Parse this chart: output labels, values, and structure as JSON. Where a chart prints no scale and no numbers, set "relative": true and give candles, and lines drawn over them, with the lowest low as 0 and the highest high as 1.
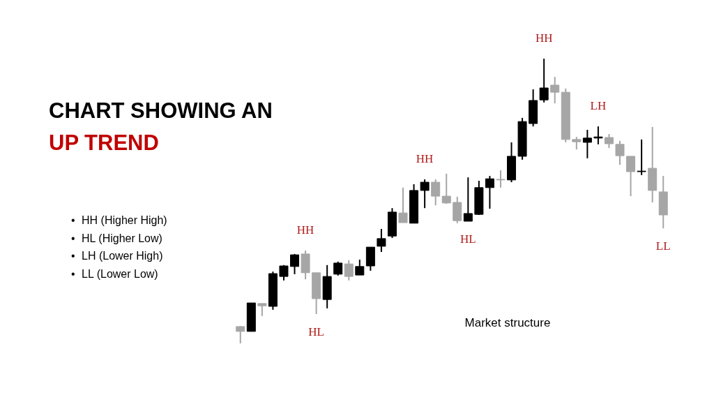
{
  "chart_data": {
    "type": "candlestick",
    "title": "CHART SHOWING AN",
    "subtitle": "UP TREND",
    "relative": true,
    "categories": [
      null,
      null,
      null,
      null,
      null,
      null,
      null,
      null,
      null,
      null,
      null,
      null,
      null,
      null,
      null,
      null,
      null,
      null,
      null,
      null,
      null,
      null,
      null,
      null,
      null,
      null,
      null,
      null,
      null,
      null,
      null,
      null,
      null,
      null,
      null,
      null,
      null,
      null,
      null,
      null
    ],
    "ohlc": [
      [
        0.059,
        0.061,
        0,
        0.042
      ],
      [
        0.042,
        0.142,
        0.042,
        0.142
      ],
      [
        0.14,
        0.14,
        0.096,
        0.132
      ],
      [
        0.13,
        0.252,
        0.118,
        0.245
      ],
      [
        0.235,
        0.275,
        0.221,
        0.272
      ],
      [
        0.27,
        0.314,
        0.243,
        0.311
      ],
      [
        0.314,
        0.326,
        0.225,
        0.248
      ],
      [
        0.248,
        0.248,
        0.103,
        0.157
      ],
      [
        0.154,
        0.275,
        0.123,
        0.235
      ],
      [
        0.243,
        0.287,
        0.238,
        0.282
      ],
      [
        0.279,
        0.292,
        0.221,
        0.235
      ],
      [
        0.24,
        0.294,
        0.24,
        0.27
      ],
      [
        0.272,
        0.338,
        0.255,
        0.338
      ],
      [
        0.341,
        0.402,
        0.321,
        0.368
      ],
      [
        0.377,
        0.475,
        0.37,
        0.461
      ],
      [
        0.458,
        0.547,
        0.424,
        0.424
      ],
      [
        0.422,
        0.559,
        0.422,
        0.537
      ],
      [
        0.537,
        0.576,
        0.475,
        0.566
      ],
      [
        0.566,
        0.576,
        0.485,
        0.517
      ],
      [
        0.517,
        0.596,
        0.49,
        0.493
      ],
      [
        0.495,
        0.515,
        0.422,
        0.431
      ],
      [
        0.429,
        0.583,
        0.429,
        0.456
      ],
      [
        0.453,
        0.571,
        0.451,
        0.547
      ],
      [
        0.547,
        0.588,
        0.473,
        0.578
      ],
      [
        0.576,
        0.608,
        0.547,
        0.574
      ],
      [
        0.574,
        0.706,
        0.566,
        0.657
      ],
      [
        0.657,
        0.792,
        0.645,
        0.779
      ],
      [
        0.772,
        0.892,
        0.762,
        0.853
      ],
      [
        0.855,
        1,
        0.846,
        0.897
      ],
      [
        0.907,
        0.936,
        0.843,
        0.882
      ],
      [
        0.882,
        0.895,
        0.706,
        0.716
      ],
      [
        0.716,
        0.725,
        0.681,
        0.708
      ],
      [
        0.706,
        0.75,
        0.65,
        0.721
      ],
      [
        0.721,
        0.762,
        0.699,
        0.725
      ],
      [
        0.723,
        0.735,
        0.686,
        0.701
      ],
      [
        0.699,
        0.711,
        0.627,
        0.659
      ],
      [
        0.657,
        0.657,
        0.517,
        0.603
      ],
      [
        0.603,
        0.716,
        0.591,
        0.605
      ],
      [
        0.615,
        0.76,
        0.495,
        0.537
      ],
      [
        0.532,
        0.588,
        0.404,
        0.451
      ]
    ],
    "colors": [
      "#a6a6a6",
      "#000000",
      "#a6a6a6",
      "#000000",
      "#000000",
      "#000000",
      "#a6a6a6",
      "#a6a6a6",
      "#000000",
      "#000000",
      "#a6a6a6",
      "#000000",
      "#000000",
      "#000000",
      "#000000",
      "#a6a6a6",
      "#000000",
      "#000000",
      "#a6a6a6",
      "#a6a6a6",
      "#a6a6a6",
      "#000000",
      "#000000",
      "#000000",
      "#a6a6a6",
      "#000000",
      "#000000",
      "#000000",
      "#000000",
      "#a6a6a6",
      "#a6a6a6",
      "#a6a6a6",
      "#000000",
      "#000000",
      "#a6a6a6",
      "#a6a6a6",
      "#a6a6a6",
      "#000000",
      "#a6a6a6",
      "#a6a6a6"
    ],
    "annotations": [
      "• HH (Higher High)",
      "• HL (Higher Low)",
      "• LH (Lower High)",
      "• LL (Lower Low)",
      {
        "text": "HH",
        "y": 0.326
      },
      {
        "text": "HL",
        "y": 0.103
      },
      {
        "text": "HH",
        "y": 0.576
      },
      {
        "text": "HL",
        "y": 0.429
      },
      {
        "text": "HH",
        "y": 1
      },
      {
        "text": "LH",
        "y": 0.762
      },
      {
        "text": "LL",
        "y": 0.404
      },
      "Market structure"
    ]
  }
}
